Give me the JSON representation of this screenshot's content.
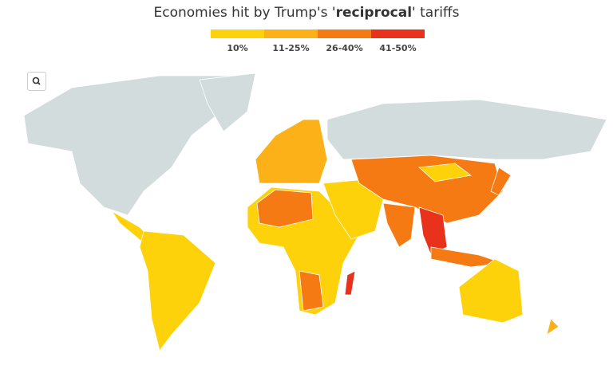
{
  "title": {
    "before": "Economies hit by Trump's '",
    "emphasis": "reciprocal",
    "after": "' tariffs"
  },
  "legend": {
    "items": [
      {
        "label": "10%",
        "color": "#fdd20a"
      },
      {
        "label": "11-25%",
        "color": "#fbb117"
      },
      {
        "label": "26-40%",
        "color": "#f57a14"
      },
      {
        "label": "41-50%",
        "color": "#e8321c"
      }
    ]
  }
}
